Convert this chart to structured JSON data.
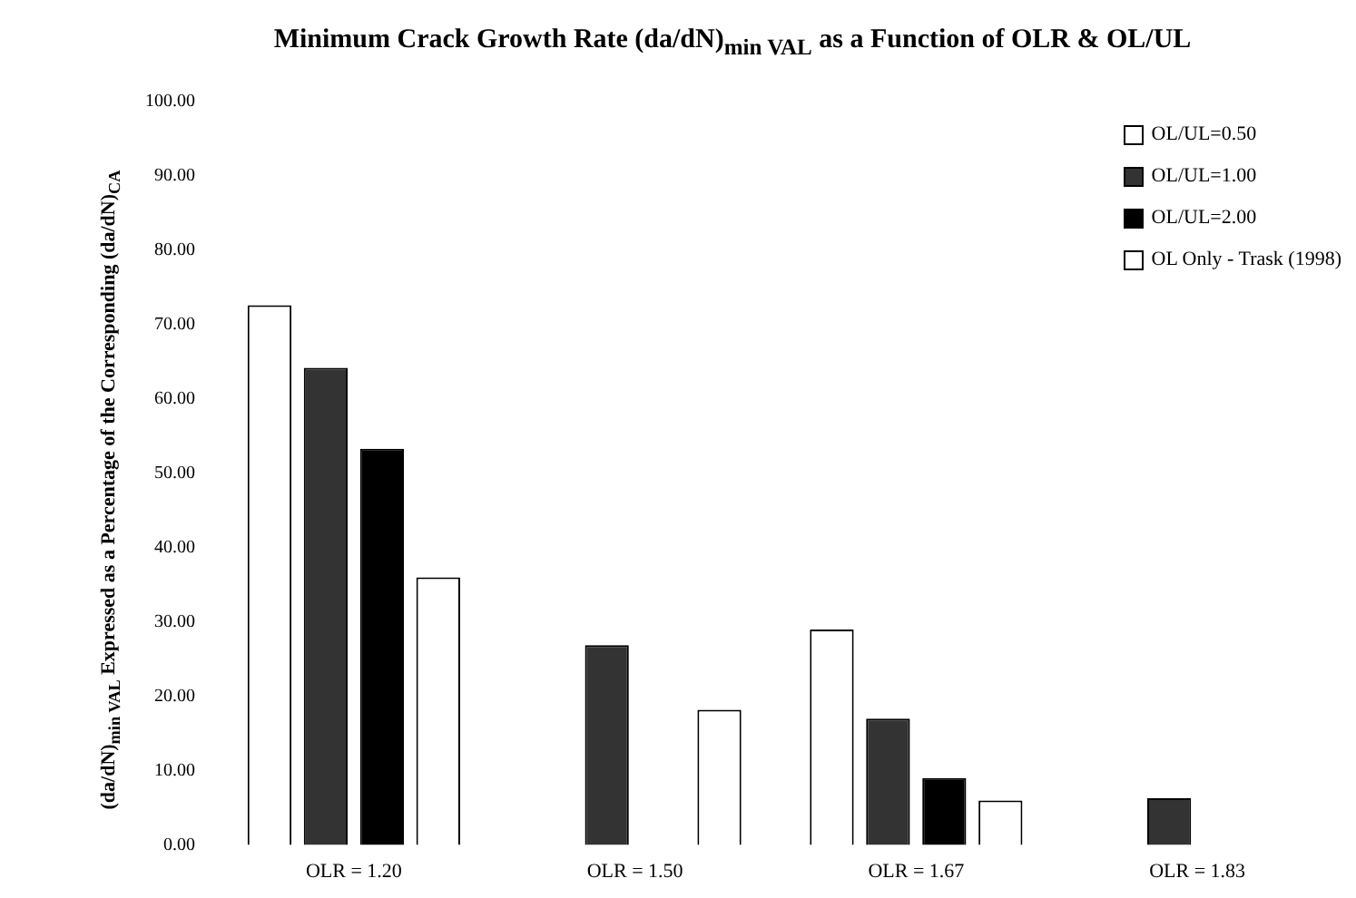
{
  "chart_data": {
    "type": "bar",
    "title": "Minimum Crack Growth Rate (da/dN)$_{min VAL}$ as a Function of OLR & OL/UL",
    "ylabel": "(da/dN)$_{min VAL}$ Expressed as a Percentage of the Corresponding (da/dN)$_{CA}$",
    "categories": [
      "OLR = 1.20",
      "OLR = 1.50",
      "OLR = 1.67",
      "OLR = 1.83"
    ],
    "series": [
      {
        "name": "OL/UL=0.50",
        "color": "#ffffff",
        "values": [
          72.6,
          null,
          29.0,
          null
        ]
      },
      {
        "name": "OL/UL=1.00",
        "color": "#333333",
        "values": [
          64.2,
          26.9,
          17.0,
          6.3
        ]
      },
      {
        "name": "OL/UL=2.00",
        "color": "#000000",
        "values": [
          53.3,
          null,
          9.0,
          null
        ]
      },
      {
        "name": "OL Only - Trask (1998)",
        "color": "#ffffff",
        "values": [
          36.0,
          18.2,
          6.0,
          null
        ]
      }
    ],
    "ylim": [
      0,
      100
    ],
    "yticks": [
      {
        "value": 0,
        "label": "0.00"
      },
      {
        "value": 10,
        "label": "10.00"
      },
      {
        "value": 20,
        "label": "20.00"
      },
      {
        "value": 30,
        "label": "30.00"
      },
      {
        "value": 40,
        "label": "40.00"
      },
      {
        "value": 50,
        "label": "50.00"
      },
      {
        "value": 60,
        "label": "60.00"
      },
      {
        "value": 70,
        "label": "70.00"
      },
      {
        "value": 80,
        "label": "80.00"
      },
      {
        "value": 90,
        "label": "90.00"
      },
      {
        "value": 100,
        "label": "100.00"
      }
    ],
    "grid": false,
    "legend": "top right"
  }
}
